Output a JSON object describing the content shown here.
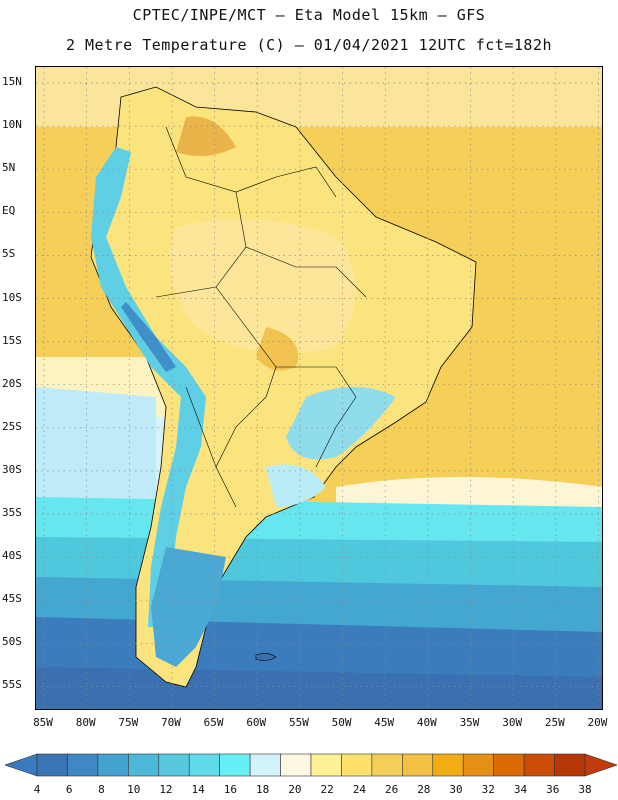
{
  "header": {
    "line1": "CPTEC/INPE/MCT –   Eta Model 15km – GFS",
    "line2": "2 Metre Temperature (C) – 01/04/2021 12UTC fct=182h"
  },
  "map": {
    "lat_labels": [
      "15N",
      "10N",
      "5N",
      "EQ",
      "5S",
      "10S",
      "15S",
      "20S",
      "25S",
      "30S",
      "35S",
      "40S",
      "45S",
      "50S",
      "55S"
    ],
    "lon_labels": [
      "85W",
      "80W",
      "75W",
      "70W",
      "65W",
      "60W",
      "55W",
      "50W",
      "45W",
      "40W",
      "35W",
      "30W",
      "25W",
      "20W"
    ],
    "lon_range": [
      -86,
      -19
    ],
    "lat_range": [
      -58,
      16
    ],
    "grid": "dotted"
  },
  "colorbar": {
    "labels": [
      "4",
      "6",
      "8",
      "10",
      "12",
      "14",
      "16",
      "18",
      "20",
      "22",
      "24",
      "26",
      "28",
      "30",
      "32",
      "34",
      "36",
      "38"
    ],
    "low_color": "#3a7bbf",
    "high_color": "#c23b0c",
    "colors": [
      "#3b74b4",
      "#3f88c3",
      "#43a2cf",
      "#4cb9d9",
      "#56c9df",
      "#5fdbe9",
      "#66f0f5",
      "#d3f3fb",
      "#fdf7e3",
      "#fdf095",
      "#fde16b",
      "#f4cf58",
      "#f0c142",
      "#f2ad14",
      "#e68f16",
      "#de6a07",
      "#cc4b06",
      "#b73605"
    ]
  }
}
